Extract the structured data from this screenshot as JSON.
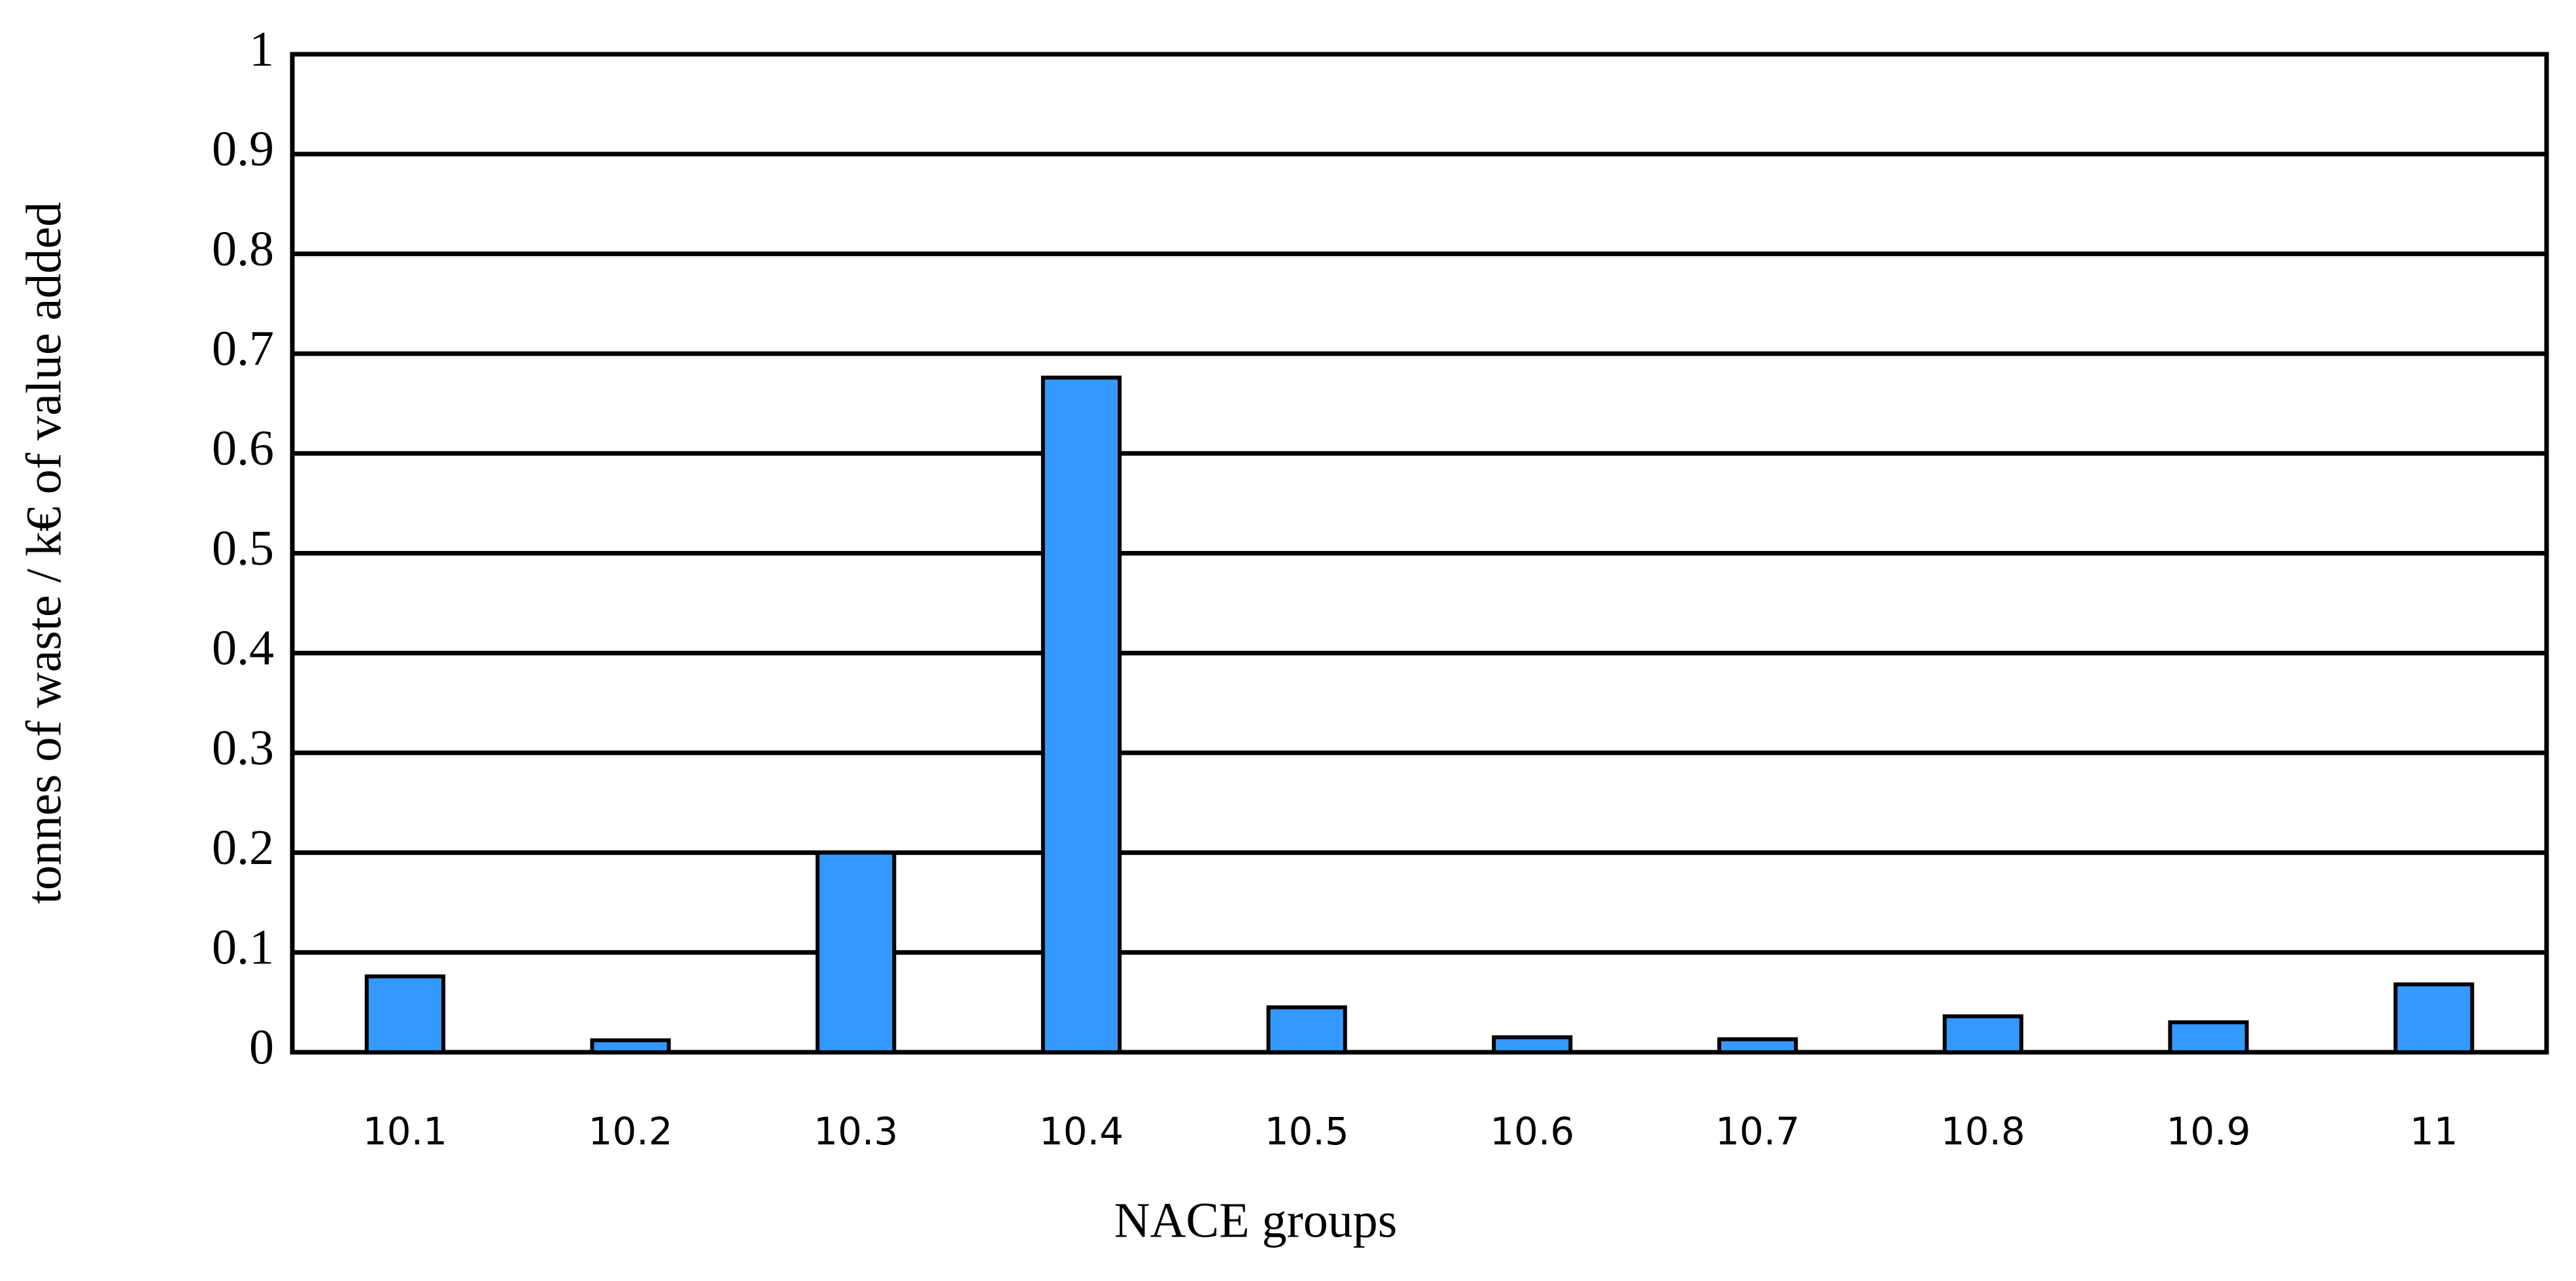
{
  "chart_data": {
    "type": "bar",
    "x_label": "NACE groups",
    "y_label": "tonnes of waste / k€ of value added",
    "categories": [
      "10.1",
      "10.2",
      "10.3",
      "10.4",
      "10.5",
      "10.6",
      "10.7",
      "10.8",
      "10.9",
      "11"
    ],
    "values": [
      0.076,
      0.012,
      0.2,
      0.676,
      0.045,
      0.015,
      0.013,
      0.036,
      0.03,
      0.068
    ],
    "color": "#3399ff",
    "ylim": [
      0,
      1
    ],
    "yticks": [
      0,
      0.1,
      0.2,
      0.3,
      0.4,
      0.5,
      0.6,
      0.7,
      0.8,
      0.9,
      1
    ],
    "grid": true
  }
}
